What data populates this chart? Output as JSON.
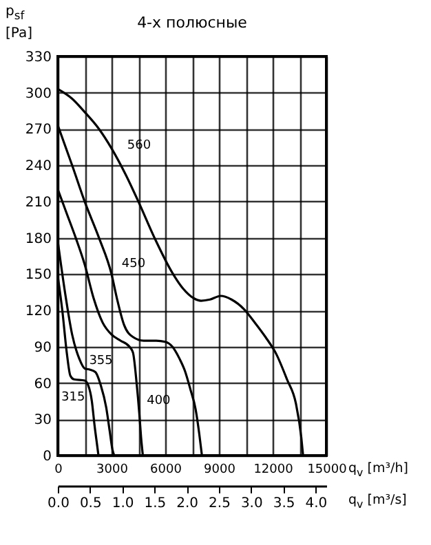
{
  "chart_data": {
    "type": "line",
    "title": "4-х полюсные",
    "xlabel": "q$_{v}$ [m³/h]",
    "x2label": "q$_{v}$ [m³/s]",
    "ylabel": "p$_{sf}$ [Pa]",
    "xlim": [
      0,
      15000
    ],
    "xticks": [
      0,
      {
        "value": 1500,
        "label": null
      },
      3000,
      {
        "value": 4500,
        "label": null
      },
      6000,
      {
        "value": 7500,
        "label": null
      },
      9000,
      {
        "value": 10500,
        "label": null
      },
      12000,
      {
        "value": 13500,
        "label": null
      },
      15000
    ],
    "x2lim": [
      0,
      4.1667
    ],
    "x2ticks": [
      {
        "value": 0,
        "label": "0.0"
      },
      0.5,
      {
        "value": 1,
        "label": "1.0"
      },
      1.5,
      {
        "value": 2,
        "label": "2.0"
      },
      2.5,
      {
        "value": 3,
        "label": "3.0"
      },
      3.5,
      {
        "value": 4,
        "label": "4.0"
      }
    ],
    "ylim": [
      0,
      330
    ],
    "yticks": [
      0,
      30,
      60,
      90,
      120,
      150,
      180,
      210,
      240,
      270,
      300,
      330
    ],
    "grid": true,
    "line_style": "solid",
    "series": [
      {
        "name": "315",
        "color": "#000000",
        "x": [
          0,
          250,
          500,
          700,
          900,
          1500,
          1700,
          1900,
          2050,
          2200,
          2270
        ],
        "values": [
          148,
          120,
          85,
          66,
          63,
          62,
          58,
          45,
          25,
          8,
          0
        ]
      },
      {
        "name": "355",
        "color": "#000000",
        "x": [
          0,
          400,
          800,
          1200,
          1500,
          1800,
          2100,
          2400,
          2700,
          2900,
          3050,
          3150
        ],
        "values": [
          177,
          135,
          100,
          80,
          72,
          71,
          69,
          58,
          40,
          20,
          5,
          0
        ]
      },
      {
        "name": "400",
        "color": "#000000",
        "x": [
          0,
          500,
          1000,
          1500,
          2000,
          2500,
          3000,
          3500,
          4000,
          4200,
          4400,
          4550,
          4650,
          4750
        ],
        "values": [
          220,
          200,
          180,
          158,
          130,
          110,
          100,
          95,
          90,
          85,
          60,
          35,
          15,
          0
        ]
      },
      {
        "name": "450",
        "color": "#000000",
        "x": [
          0,
          800,
          1500,
          2300,
          3000,
          3300,
          3700,
          4200,
          4800,
          5500,
          6000,
          6400,
          6800,
          7100,
          7400,
          7700,
          7900,
          8050
        ],
        "values": [
          273,
          240,
          210,
          180,
          150,
          130,
          108,
          98,
          95,
          95,
          94,
          90,
          80,
          70,
          55,
          38,
          18,
          0
        ]
      },
      {
        "name": "560",
        "color": "#000000",
        "x": [
          0,
          800,
          1500,
          2300,
          3000,
          3800,
          4500,
          5400,
          6400,
          7000,
          7600,
          8000,
          8500,
          9100,
          9700,
          10400,
          11000,
          11600,
          12200,
          12800,
          13300,
          13600,
          13700
        ],
        "values": [
          303,
          295,
          284,
          270,
          254,
          232,
          210,
          180,
          151,
          138,
          130,
          128,
          129,
          132,
          129,
          121,
          110,
          98,
          84,
          63,
          43,
          15,
          0
        ]
      }
    ]
  }
}
